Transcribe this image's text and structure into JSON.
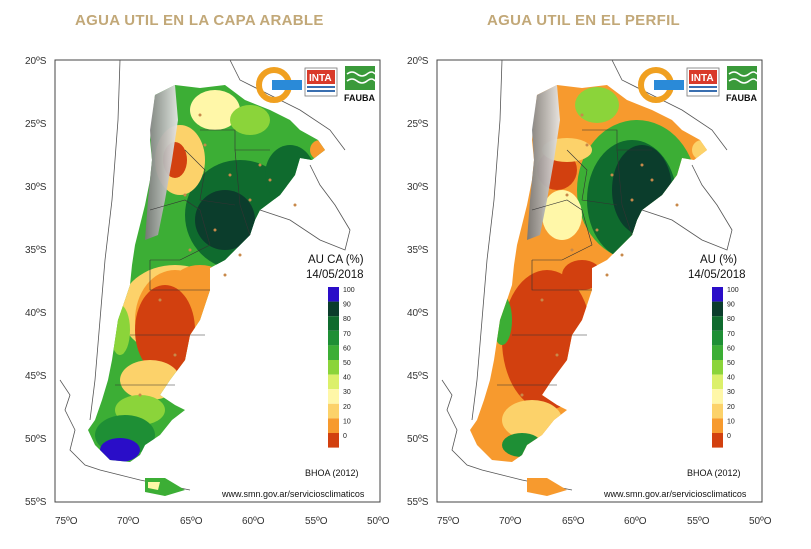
{
  "left_map": {
    "title": "AGUA UTIL EN LA CAPA ARABLE",
    "legend_title": "AU CA (%)",
    "date": "14/05/2018",
    "model": "BHOA (2012)",
    "url": "www.smn.gov.ar/serviciosclimaticos"
  },
  "right_map": {
    "title": "AGUA UTIL EN EL PERFIL",
    "legend_title": "AU (%)",
    "date": "14/05/2018",
    "model": "BHOA (2012)",
    "url": "www.smn.gov.ar/serviciosclimaticos"
  },
  "lat_ticks": [
    "20ºS",
    "25ºS",
    "30ºS",
    "35ºS",
    "40ºS",
    "45ºS",
    "50ºS",
    "55ºS"
  ],
  "lon_ticks": [
    "75ºO",
    "70ºO",
    "65ºO",
    "60ºO",
    "55ºO",
    "50ºO"
  ],
  "legend": {
    "levels": [
      "100",
      "90",
      "80",
      "70",
      "60",
      "50",
      "40",
      "30",
      "20",
      "10",
      "0"
    ],
    "colors": [
      "#2a0dc8",
      "#0b3d2c",
      "#0f6b2e",
      "#1e8f35",
      "#3cae35",
      "#8bd43a",
      "#dcf06a",
      "#fff7a8",
      "#fcd26a",
      "#f79a2e",
      "#d2400f"
    ]
  },
  "logos": {
    "inta": "INTA",
    "fauba": "FAUBA"
  }
}
